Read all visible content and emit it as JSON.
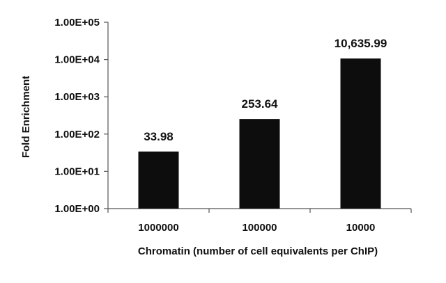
{
  "chart_data": {
    "type": "bar",
    "title": "",
    "xlabel": "Chromatin (number of cell equivalents per ChIP)",
    "ylabel": "Fold Enrichment",
    "y_scale": "log",
    "ylim": [
      1,
      100000
    ],
    "y_ticks": [
      1,
      10,
      100,
      1000,
      10000,
      100000
    ],
    "y_tick_labels": [
      "1.00E+00",
      "1.00E+01",
      "1.00E+02",
      "1.00E+03",
      "1.00E+04",
      "1.00E+05"
    ],
    "categories": [
      "1000000",
      "100000",
      "10000"
    ],
    "values": [
      33.98,
      253.64,
      10635.99
    ],
    "data_labels": [
      "33.98",
      "253.64",
      "10,635.99"
    ],
    "bar_color": "#0d0d0d",
    "grid": false,
    "legend": "none"
  }
}
